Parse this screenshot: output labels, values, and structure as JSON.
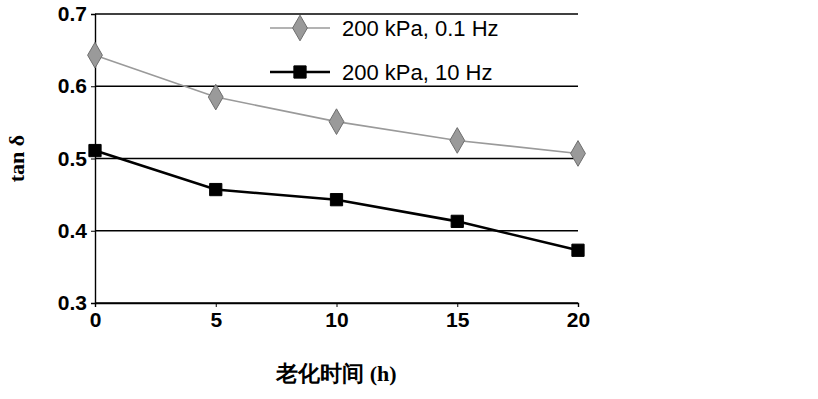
{
  "chart_data": {
    "type": "line",
    "x_label": "老化时间 (h)",
    "y_label": "tan δ",
    "x": [
      0,
      5,
      10,
      15,
      20
    ],
    "series": [
      {
        "name": "200 kPa, 0.1 Hz",
        "color": "#9a9a9a",
        "marker": "diamond",
        "line_style": "solid",
        "values": [
          0.643,
          0.585,
          0.551,
          0.525,
          0.507
        ]
      },
      {
        "name": "200 kPa, 10 Hz",
        "color": "#000000",
        "marker": "square",
        "line_style": "solid",
        "values": [
          0.511,
          0.457,
          0.443,
          0.413,
          0.373
        ]
      }
    ],
    "xlim": [
      0,
      20
    ],
    "xticks": [
      0,
      5,
      10,
      15,
      20
    ],
    "ylim": [
      0.3,
      0.7
    ],
    "yticks": [
      0.3,
      0.4,
      0.5,
      0.6,
      0.7
    ],
    "grid": true,
    "legend": "upper right"
  }
}
